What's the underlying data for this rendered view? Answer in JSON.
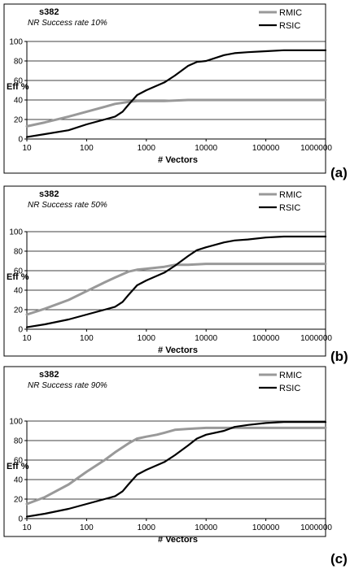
{
  "chart_data": [
    {
      "type": "line",
      "panel_label": "(a)",
      "title": "s382",
      "subtitle": "NR Success rate 10%",
      "xlabel": "# Vectors",
      "ylabel": "Eff %",
      "x_scale": "log",
      "xlim": [
        10,
        1000000
      ],
      "ylim": [
        0,
        100
      ],
      "xticks": [
        "10",
        "100",
        "1000",
        "10000",
        "100000",
        "1000000"
      ],
      "yticks": [
        "0",
        "20",
        "40",
        "60",
        "80",
        "100"
      ],
      "grid": "horizontal",
      "legend_position": "top-right",
      "series": [
        {
          "name": "RMIC",
          "color": "#999999",
          "x": [
            10,
            20,
            50,
            100,
            200,
            300,
            500,
            700,
            1000,
            2000,
            5000,
            10000,
            100000,
            1000000
          ],
          "y": [
            13,
            17,
            23,
            28,
            33,
            36,
            38,
            39,
            39,
            39,
            40,
            40,
            40,
            40
          ]
        },
        {
          "name": "RSIC",
          "color": "#000000",
          "x": [
            10,
            20,
            50,
            100,
            200,
            300,
            400,
            500,
            700,
            1000,
            2000,
            3000,
            5000,
            7000,
            10000,
            20000,
            30000,
            50000,
            100000,
            200000,
            500000,
            1000000
          ],
          "y": [
            2,
            5,
            9,
            15,
            20,
            23,
            28,
            35,
            45,
            50,
            58,
            65,
            75,
            79,
            80,
            86,
            88,
            89,
            90,
            91,
            91,
            91
          ]
        }
      ]
    },
    {
      "type": "line",
      "panel_label": "(b)",
      "title": "s382",
      "subtitle": "NR Success rate 50%",
      "xlabel": "# Vectors",
      "ylabel": "Eff %",
      "x_scale": "log",
      "xlim": [
        10,
        1000000
      ],
      "ylim": [
        0,
        100
      ],
      "xticks": [
        "10",
        "100",
        "1000",
        "10000",
        "100000",
        "1000000"
      ],
      "yticks": [
        "0",
        "20",
        "40",
        "60",
        "80",
        "100"
      ],
      "grid": "horizontal",
      "legend_position": "top-right",
      "series": [
        {
          "name": "RMIC",
          "color": "#999999",
          "x": [
            10,
            20,
            50,
            100,
            200,
            300,
            500,
            700,
            1000,
            2000,
            3000,
            5000,
            10000,
            100000,
            1000000
          ],
          "y": [
            15,
            21,
            30,
            39,
            48,
            53,
            59,
            61,
            62,
            64,
            66,
            66,
            67,
            67,
            67
          ]
        },
        {
          "name": "RSIC",
          "color": "#000000",
          "x": [
            10,
            20,
            50,
            100,
            200,
            300,
            400,
            500,
            700,
            1000,
            2000,
            3000,
            5000,
            7000,
            10000,
            20000,
            30000,
            50000,
            100000,
            200000,
            500000,
            1000000
          ],
          "y": [
            2,
            5,
            10,
            15,
            20,
            23,
            28,
            35,
            45,
            50,
            58,
            65,
            75,
            81,
            84,
            89,
            91,
            92,
            94,
            95,
            95,
            95
          ]
        }
      ]
    },
    {
      "type": "line",
      "panel_label": "(c)",
      "title": "s382",
      "subtitle": "NR Success rate 90%",
      "xlabel": "# Vectors",
      "ylabel": "Eff %",
      "x_scale": "log",
      "xlim": [
        10,
        1000000
      ],
      "ylim": [
        0,
        100
      ],
      "xticks": [
        "10",
        "100",
        "1000",
        "10000",
        "100000",
        "1000000"
      ],
      "yticks": [
        "0",
        "20",
        "40",
        "60",
        "80",
        "100"
      ],
      "grid": "horizontal",
      "legend_position": "top-right",
      "series": [
        {
          "name": "RMIC",
          "color": "#999999",
          "x": [
            10,
            20,
            50,
            100,
            200,
            300,
            500,
            700,
            1000,
            1500,
            2000,
            3000,
            5000,
            10000,
            100000,
            1000000
          ],
          "y": [
            15,
            22,
            35,
            48,
            60,
            68,
            77,
            82,
            84,
            86,
            88,
            91,
            92,
            93,
            93,
            93
          ]
        },
        {
          "name": "RSIC",
          "color": "#000000",
          "x": [
            10,
            20,
            50,
            100,
            200,
            300,
            400,
            500,
            700,
            1000,
            2000,
            3000,
            5000,
            7000,
            10000,
            20000,
            30000,
            50000,
            100000,
            200000,
            500000,
            1000000
          ],
          "y": [
            2,
            5,
            10,
            15,
            20,
            23,
            28,
            35,
            45,
            50,
            58,
            65,
            75,
            82,
            86,
            90,
            94,
            96,
            98,
            99,
            99,
            99
          ]
        }
      ]
    }
  ]
}
